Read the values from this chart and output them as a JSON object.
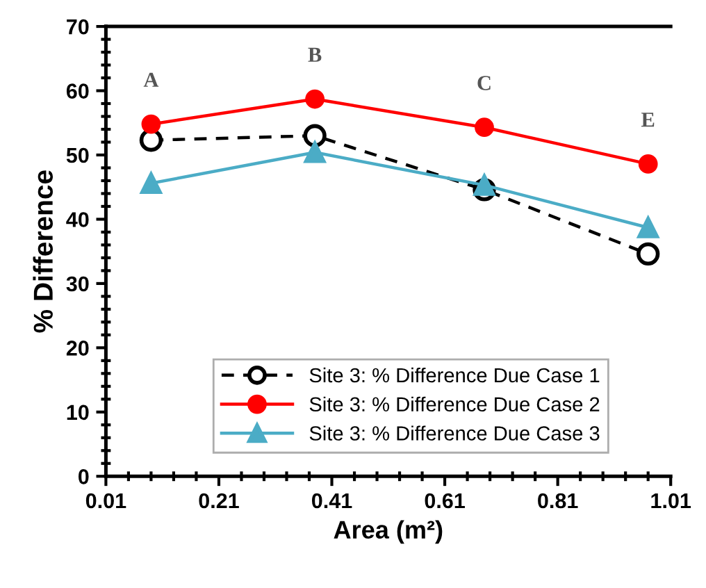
{
  "chart_data": {
    "type": "line",
    "xlabel": "Area (m²)",
    "ylabel": "% Difference",
    "x": [
      0.09,
      0.38,
      0.68,
      0.97
    ],
    "series": [
      {
        "name": "Site 3: % Difference Due Case 1",
        "color": "#000000",
        "values": [
          52.3,
          53.0,
          44.6,
          34.6
        ],
        "marker": "circle",
        "line_style": "dashed"
      },
      {
        "name": "Site 3: % Difference Due Case 2",
        "color": "#ff0000",
        "values": [
          54.8,
          58.7,
          54.3,
          48.6
        ],
        "marker": "circle",
        "line_style": "solid"
      },
      {
        "name": "Site 3: % Difference Due Case 3",
        "color": "#4bacc6",
        "values": [
          45.6,
          50.4,
          45.3,
          38.7
        ],
        "marker": "triangle",
        "line_style": "solid"
      }
    ],
    "annotations": [
      "A",
      "B",
      "C",
      "E"
    ],
    "xlim": [
      0.01,
      1.01
    ],
    "xticks": [
      0.01,
      0.21,
      0.41,
      0.61,
      0.81,
      1.01
    ],
    "ylim": [
      0,
      70
    ],
    "yticks": [
      0,
      10,
      20,
      30,
      40,
      50,
      60,
      70
    ],
    "grid": false,
    "legend": "bottom"
  }
}
